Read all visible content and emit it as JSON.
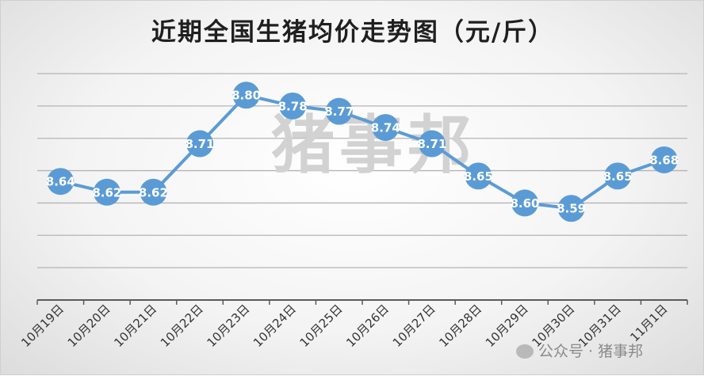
{
  "chart_data": {
    "type": "line",
    "title": "近期全国生猪均价走势图（元/斤）",
    "categories": [
      "10月19日",
      "10月20日",
      "10月21日",
      "10月22日",
      "10月23日",
      "10月24日",
      "10月25日",
      "10月26日",
      "10月27日",
      "10月28日",
      "10月29日",
      "10月30日",
      "10月31日",
      "11月1日"
    ],
    "series": [
      {
        "values": [
          8.64,
          8.62,
          8.62,
          8.71,
          8.8,
          8.78,
          8.77,
          8.74,
          8.71,
          8.65,
          8.6,
          8.59,
          8.65,
          8.68
        ]
      }
    ],
    "data_labels": [
      "8.64",
      "8.62",
      "8.62",
      "8.71",
      "8.80",
      "8.78",
      "8.77",
      "8.74",
      "8.71",
      "8.65",
      "8.60",
      "8.59",
      "8.65",
      "8.68"
    ],
    "ylim": [
      8.42,
      8.84
    ],
    "grid": true,
    "legend": "none",
    "line_color": "#5b9bd5"
  },
  "watermark": "猪事邦",
  "footer_watermark": "公众号 · 猪事邦"
}
